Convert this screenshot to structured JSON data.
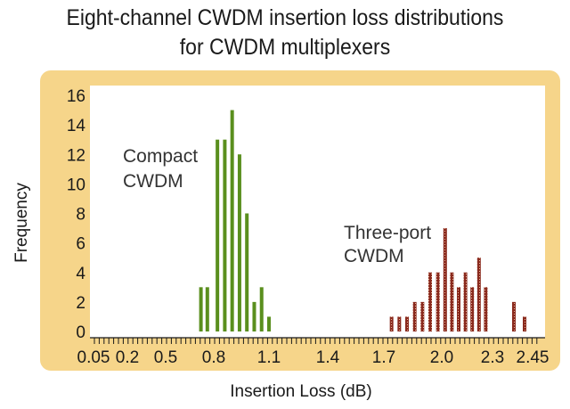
{
  "chart_data": {
    "type": "bar",
    "title": [
      "Eight-channel CWDM insertion loss distributions",
      "for CWDM multiplexers"
    ],
    "xlabel": "Insertion Loss (dB)",
    "ylabel": "Frequency",
    "xlim": [
      0.05,
      2.45
    ],
    "ylim": [
      0,
      16
    ],
    "x_ticks": [
      {
        "value": 0.05,
        "label": "0.05"
      },
      {
        "value": 0.2,
        "label": "0.2"
      },
      {
        "value": 0.5,
        "label": "0.5"
      },
      {
        "value": 0.8,
        "label": "0.8"
      },
      {
        "value": 1.1,
        "label": "1.1"
      },
      {
        "value": 1.4,
        "label": "1.4"
      },
      {
        "value": 1.7,
        "label": "1.7"
      },
      {
        "value": 2.0,
        "label": "2.0"
      },
      {
        "value": 2.3,
        "label": "2.3"
      },
      {
        "value": 2.45,
        "label": "2.45"
      }
    ],
    "y_ticks": [
      0,
      2,
      4,
      6,
      8,
      10,
      12,
      14,
      16
    ],
    "grid": false,
    "series": [
      {
        "name": "Compact CWDM",
        "label_lines": [
          "Compact",
          "CWDM"
        ],
        "color": "#5a8f1e",
        "points": [
          {
            "x": 0.72,
            "y": 3
          },
          {
            "x": 0.76,
            "y": 3
          },
          {
            "x": 0.82,
            "y": 13
          },
          {
            "x": 0.86,
            "y": 13
          },
          {
            "x": 0.9,
            "y": 15
          },
          {
            "x": 0.94,
            "y": 12
          },
          {
            "x": 0.98,
            "y": 8
          },
          {
            "x": 1.02,
            "y": 2
          },
          {
            "x": 1.06,
            "y": 3
          },
          {
            "x": 1.1,
            "y": 1
          }
        ]
      },
      {
        "name": "Three-port CWDM",
        "label_lines": [
          "Three-port",
          "CWDM"
        ],
        "color": "#8a2a1e",
        "points": [
          {
            "x": 1.74,
            "y": 1
          },
          {
            "x": 1.78,
            "y": 1
          },
          {
            "x": 1.82,
            "y": 1
          },
          {
            "x": 1.86,
            "y": 2
          },
          {
            "x": 1.9,
            "y": 2
          },
          {
            "x": 1.94,
            "y": 4
          },
          {
            "x": 1.98,
            "y": 4
          },
          {
            "x": 2.02,
            "y": 7
          },
          {
            "x": 2.06,
            "y": 4
          },
          {
            "x": 2.1,
            "y": 3
          },
          {
            "x": 2.14,
            "y": 4
          },
          {
            "x": 2.18,
            "y": 3
          },
          {
            "x": 2.22,
            "y": 5
          },
          {
            "x": 2.26,
            "y": 3
          },
          {
            "x": 2.38,
            "y": 2
          },
          {
            "x": 2.42,
            "y": 1
          }
        ]
      }
    ]
  }
}
